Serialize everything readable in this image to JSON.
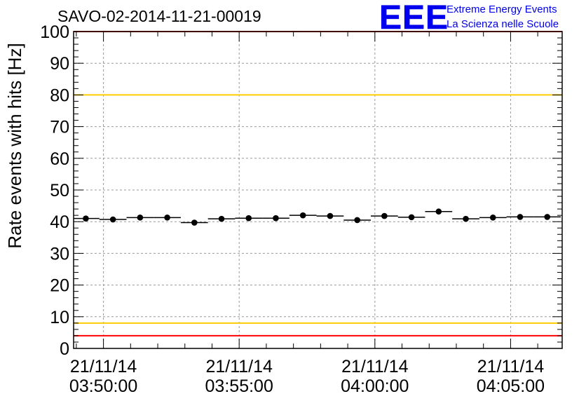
{
  "chart_data": {
    "type": "scatter",
    "title": "SAVO-02-2014-11-21-00019",
    "ylabel": "Rate events with hits [Hz]",
    "xlabel": "",
    "ylim": [
      0,
      100
    ],
    "xlim_minutes": [
      -1.1,
      16.9
    ],
    "y_ticks": [
      0,
      10,
      20,
      30,
      40,
      50,
      60,
      70,
      80,
      90,
      100
    ],
    "x_ticks": [
      {
        "minute": 0,
        "date": "21/11/14",
        "time": "03:50:00"
      },
      {
        "minute": 5,
        "date": "21/11/14",
        "time": "03:55:00"
      },
      {
        "minute": 10,
        "date": "21/11/14",
        "time": "04:00:00"
      },
      {
        "minute": 15,
        "date": "21/11/14",
        "time": "04:05:00"
      }
    ],
    "grid": true,
    "bin_width_minutes": 1,
    "series": [
      {
        "name": "rate",
        "x_minutes": [
          -0.65,
          0.35,
          1.35,
          2.35,
          3.35,
          4.35,
          5.35,
          6.35,
          7.35,
          8.35,
          9.35,
          10.35,
          11.35,
          12.35,
          13.35,
          14.35,
          15.35,
          16.35
        ],
        "values": [
          41.0,
          40.7,
          41.3,
          41.3,
          39.7,
          40.9,
          41.1,
          41.1,
          42.0,
          41.8,
          40.5,
          41.8,
          41.4,
          43.2,
          40.9,
          41.3,
          41.5,
          41.5
        ]
      }
    ],
    "reference_lines": [
      {
        "y": 100,
        "color": "#ff0000"
      },
      {
        "y": 80,
        "color": "#ffcc00"
      },
      {
        "y": 8,
        "color": "#ffcc00"
      },
      {
        "y": 4,
        "color": "#ff0000"
      }
    ]
  },
  "logo": {
    "mark": "EEE",
    "line1": "Extreme Energy Events",
    "line2": "La Scienza nelle Scuole",
    "color": "#0000ee"
  }
}
